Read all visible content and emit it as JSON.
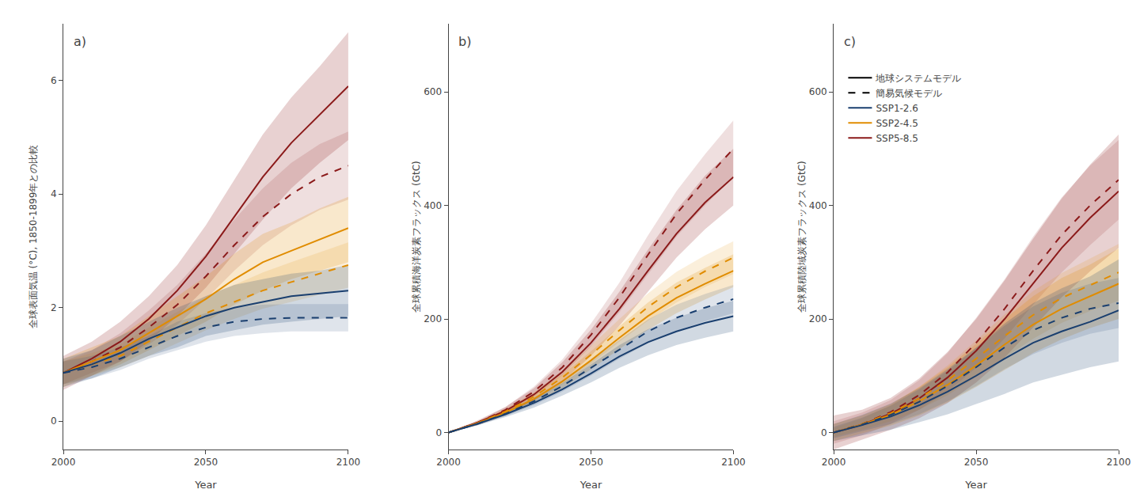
{
  "chart_data": [
    {
      "type": "line",
      "title": "a)",
      "x_label": "Year",
      "y_label": "全球表面気温 (°C), 1850-1899年との比較",
      "x": [
        2000,
        2010,
        2020,
        2030,
        2040,
        2050,
        2060,
        2070,
        2080,
        2090,
        2100
      ],
      "xlim": [
        2000,
        2100
      ],
      "xticks": [
        2000,
        2050,
        2100
      ],
      "ylim": [
        -0.5,
        7.0
      ],
      "yticks": [
        0,
        2,
        4,
        6
      ],
      "grid": false,
      "series": [
        {
          "name": "SSP5-8.5",
          "color": "#8b1a1a",
          "line_style": "solid",
          "values": [
            0.85,
            1.1,
            1.4,
            1.8,
            2.3,
            2.9,
            3.6,
            4.3,
            4.9,
            5.4,
            5.9
          ],
          "low": [
            0.55,
            0.8,
            1.05,
            1.4,
            1.85,
            2.35,
            2.95,
            3.55,
            4.1,
            4.55,
            4.95
          ],
          "high": [
            1.15,
            1.4,
            1.75,
            2.2,
            2.75,
            3.45,
            4.25,
            5.05,
            5.7,
            6.25,
            6.85
          ]
        },
        {
          "name": "SSP5-8.5",
          "color": "#8b1a1a",
          "line_style": "dashed",
          "values": [
            0.85,
            1.05,
            1.3,
            1.65,
            2.05,
            2.55,
            3.1,
            3.6,
            4.0,
            4.3,
            4.5
          ],
          "low": [
            0.65,
            0.85,
            1.05,
            1.35,
            1.7,
            2.15,
            2.65,
            3.1,
            3.45,
            3.72,
            3.9
          ],
          "high": [
            1.05,
            1.25,
            1.55,
            1.95,
            2.4,
            2.95,
            3.55,
            4.1,
            4.55,
            4.88,
            5.1
          ]
        },
        {
          "name": "SSP2-4.5",
          "color": "#e08c00",
          "line_style": "solid",
          "values": [
            0.85,
            1.05,
            1.25,
            1.55,
            1.85,
            2.15,
            2.5,
            2.8,
            3.0,
            3.2,
            3.4
          ],
          "low": [
            0.6,
            0.8,
            1.0,
            1.25,
            1.5,
            1.75,
            2.05,
            2.3,
            2.5,
            2.65,
            2.8
          ],
          "high": [
            1.1,
            1.3,
            1.5,
            1.85,
            2.2,
            2.55,
            2.95,
            3.3,
            3.5,
            3.75,
            3.95
          ]
        },
        {
          "name": "SSP2-4.5",
          "color": "#e08c00",
          "line_style": "dashed",
          "values": [
            0.85,
            1.0,
            1.15,
            1.4,
            1.65,
            1.9,
            2.1,
            2.3,
            2.45,
            2.6,
            2.75
          ],
          "low": [
            0.65,
            0.8,
            0.95,
            1.15,
            1.38,
            1.6,
            1.8,
            1.98,
            2.1,
            2.22,
            2.35
          ],
          "high": [
            1.05,
            1.2,
            1.35,
            1.65,
            1.92,
            2.2,
            2.4,
            2.62,
            2.8,
            2.98,
            3.15
          ]
        },
        {
          "name": "SSP1-2.6",
          "color": "#1a3f6f",
          "line_style": "solid",
          "values": [
            0.85,
            1.0,
            1.2,
            1.45,
            1.65,
            1.85,
            2.0,
            2.1,
            2.2,
            2.25,
            2.3
          ],
          "low": [
            0.6,
            0.75,
            0.95,
            1.15,
            1.3,
            1.5,
            1.6,
            1.7,
            1.75,
            1.8,
            1.85
          ],
          "high": [
            1.1,
            1.25,
            1.5,
            1.75,
            2.0,
            2.2,
            2.4,
            2.5,
            2.6,
            2.65,
            2.75
          ]
        },
        {
          "name": "SSP1-2.6",
          "color": "#1a3f6f",
          "line_style": "dashed",
          "values": [
            0.85,
            0.95,
            1.1,
            1.3,
            1.5,
            1.65,
            1.75,
            1.8,
            1.82,
            1.82,
            1.82
          ],
          "low": [
            0.65,
            0.75,
            0.9,
            1.1,
            1.25,
            1.4,
            1.5,
            1.55,
            1.58,
            1.58,
            1.58
          ],
          "high": [
            1.05,
            1.15,
            1.3,
            1.5,
            1.75,
            1.9,
            2.0,
            2.05,
            2.06,
            2.06,
            2.06
          ]
        }
      ]
    },
    {
      "type": "line",
      "title": "b)",
      "x_label": "Year",
      "y_label": "全球累積海洋炭素フラックス (GtC)",
      "x": [
        2000,
        2010,
        2020,
        2030,
        2040,
        2050,
        2060,
        2070,
        2080,
        2090,
        2100
      ],
      "xlim": [
        2000,
        2100
      ],
      "xticks": [
        2000,
        2050,
        2100
      ],
      "ylim": [
        -30,
        720
      ],
      "yticks": [
        0,
        200,
        400,
        600
      ],
      "grid": false,
      "series": [
        {
          "name": "SSP5-8.5",
          "color": "#8b1a1a",
          "line_style": "solid",
          "values": [
            0,
            17,
            38,
            67,
            107,
            158,
            218,
            285,
            350,
            405,
            450
          ],
          "low": [
            0,
            13,
            31,
            56,
            90,
            135,
            188,
            248,
            308,
            358,
            400
          ],
          "high": [
            0,
            21,
            45,
            78,
            124,
            181,
            248,
            322,
            392,
            452,
            500
          ]
        },
        {
          "name": "SSP5-8.5",
          "color": "#8b1a1a",
          "line_style": "dashed",
          "values": [
            0,
            17,
            40,
            72,
            115,
            172,
            238,
            313,
            385,
            445,
            500
          ],
          "low": [
            0,
            15,
            35,
            63,
            101,
            152,
            212,
            279,
            345,
            400,
            450
          ],
          "high": [
            0,
            19,
            45,
            81,
            129,
            192,
            264,
            347,
            425,
            490,
            550
          ]
        },
        {
          "name": "SSP2-4.5",
          "color": "#e08c00",
          "line_style": "solid",
          "values": [
            0,
            16,
            35,
            59,
            90,
            127,
            167,
            205,
            237,
            262,
            285
          ],
          "low": [
            0,
            13,
            30,
            51,
            78,
            111,
            147,
            181,
            210,
            234,
            256
          ],
          "high": [
            0,
            19,
            40,
            67,
            102,
            143,
            187,
            229,
            264,
            290,
            314
          ]
        },
        {
          "name": "SSP2-4.5",
          "color": "#e08c00",
          "line_style": "dashed",
          "values": [
            0,
            16,
            37,
            63,
            97,
            137,
            180,
            221,
            256,
            284,
            308
          ],
          "low": [
            0,
            14,
            32,
            55,
            85,
            121,
            160,
            197,
            229,
            256,
            279
          ],
          "high": [
            0,
            18,
            42,
            71,
            109,
            153,
            200,
            245,
            283,
            312,
            337
          ]
        },
        {
          "name": "SSP1-2.6",
          "color": "#1a3f6f",
          "line_style": "solid",
          "values": [
            0,
            15,
            32,
            52,
            76,
            104,
            134,
            159,
            178,
            193,
            205
          ],
          "low": [
            0,
            12,
            27,
            44,
            65,
            88,
            114,
            136,
            154,
            167,
            178
          ],
          "high": [
            0,
            18,
            37,
            60,
            87,
            120,
            154,
            182,
            202,
            219,
            232
          ]
        },
        {
          "name": "SSP1-2.6",
          "color": "#1a3f6f",
          "line_style": "dashed",
          "values": [
            0,
            15,
            33,
            55,
            82,
            114,
            147,
            178,
            202,
            220,
            235
          ],
          "low": [
            0,
            13,
            29,
            48,
            72,
            100,
            130,
            157,
            179,
            196,
            210
          ],
          "high": [
            0,
            17,
            37,
            62,
            92,
            128,
            164,
            199,
            225,
            244,
            260
          ]
        }
      ]
    },
    {
      "type": "line",
      "title": "c)",
      "x_label": "Year",
      "y_label": "全球累積陸域炭素フラックス (GtC)",
      "x": [
        2000,
        2010,
        2020,
        2030,
        2040,
        2050,
        2060,
        2070,
        2080,
        2090,
        2100
      ],
      "xlim": [
        2000,
        2100
      ],
      "xticks": [
        2000,
        2050,
        2100
      ],
      "ylim": [
        -30,
        720
      ],
      "yticks": [
        0,
        200,
        400,
        600
      ],
      "grid": false,
      "legend": "upper left",
      "legend_items": [
        {
          "name": "地球システムモデル",
          "color": "#000000",
          "line_style": "solid"
        },
        {
          "name": "簡易気候モデル",
          "color": "#000000",
          "line_style": "dashed"
        }
      ],
      "series": [
        {
          "name": "SSP5-8.5",
          "color": "#8b1a1a",
          "line_style": "solid",
          "values": [
            0,
            14,
            33,
            60,
            97,
            144,
            200,
            263,
            325,
            378,
            425
          ],
          "low": [
            -30,
            -12,
            5,
            25,
            52,
            88,
            132,
            185,
            238,
            284,
            325
          ],
          "high": [
            30,
            40,
            61,
            95,
            142,
            200,
            268,
            341,
            412,
            472,
            525
          ]
        },
        {
          "name": "SSP5-8.5",
          "color": "#8b1a1a",
          "line_style": "dashed",
          "values": [
            0,
            15,
            36,
            66,
            106,
            158,
            218,
            285,
            348,
            400,
            445
          ],
          "low": [
            -20,
            -5,
            15,
            40,
            72,
            114,
            166,
            225,
            282,
            330,
            375
          ],
          "high": [
            20,
            35,
            57,
            92,
            140,
            202,
            270,
            345,
            414,
            470,
            515
          ]
        },
        {
          "name": "SSP2-4.5",
          "color": "#e08c00",
          "line_style": "solid",
          "values": [
            0,
            14,
            31,
            55,
            84,
            118,
            155,
            190,
            218,
            240,
            262
          ],
          "low": [
            -15,
            -2,
            12,
            30,
            53,
            80,
            110,
            140,
            164,
            184,
            200
          ],
          "high": [
            15,
            30,
            50,
            80,
            115,
            156,
            200,
            240,
            272,
            296,
            324
          ]
        },
        {
          "name": "SSP2-4.5",
          "color": "#e08c00",
          "line_style": "dashed",
          "values": [
            0,
            15,
            34,
            60,
            92,
            130,
            170,
            207,
            237,
            260,
            282
          ],
          "low": [
            -8,
            5,
            20,
            40,
            66,
            98,
            132,
            165,
            193,
            214,
            232
          ],
          "high": [
            8,
            25,
            48,
            80,
            118,
            162,
            208,
            249,
            281,
            306,
            332
          ]
        },
        {
          "name": "SSP1-2.6",
          "color": "#1a3f6f",
          "line_style": "solid",
          "values": [
            0,
            13,
            28,
            48,
            72,
            100,
            130,
            158,
            178,
            195,
            215
          ],
          "low": [
            -15,
            -5,
            5,
            18,
            32,
            50,
            68,
            88,
            102,
            115,
            125
          ],
          "high": [
            15,
            31,
            51,
            78,
            112,
            150,
            192,
            228,
            254,
            275,
            305
          ]
        },
        {
          "name": "SSP1-2.6",
          "color": "#1a3f6f",
          "line_style": "dashed",
          "values": [
            0,
            14,
            31,
            54,
            82,
            115,
            150,
            180,
            202,
            218,
            228
          ],
          "low": [
            -10,
            2,
            15,
            32,
            55,
            82,
            112,
            138,
            158,
            174,
            184
          ],
          "high": [
            10,
            26,
            47,
            76,
            109,
            148,
            188,
            222,
            246,
            262,
            272
          ]
        }
      ]
    }
  ]
}
